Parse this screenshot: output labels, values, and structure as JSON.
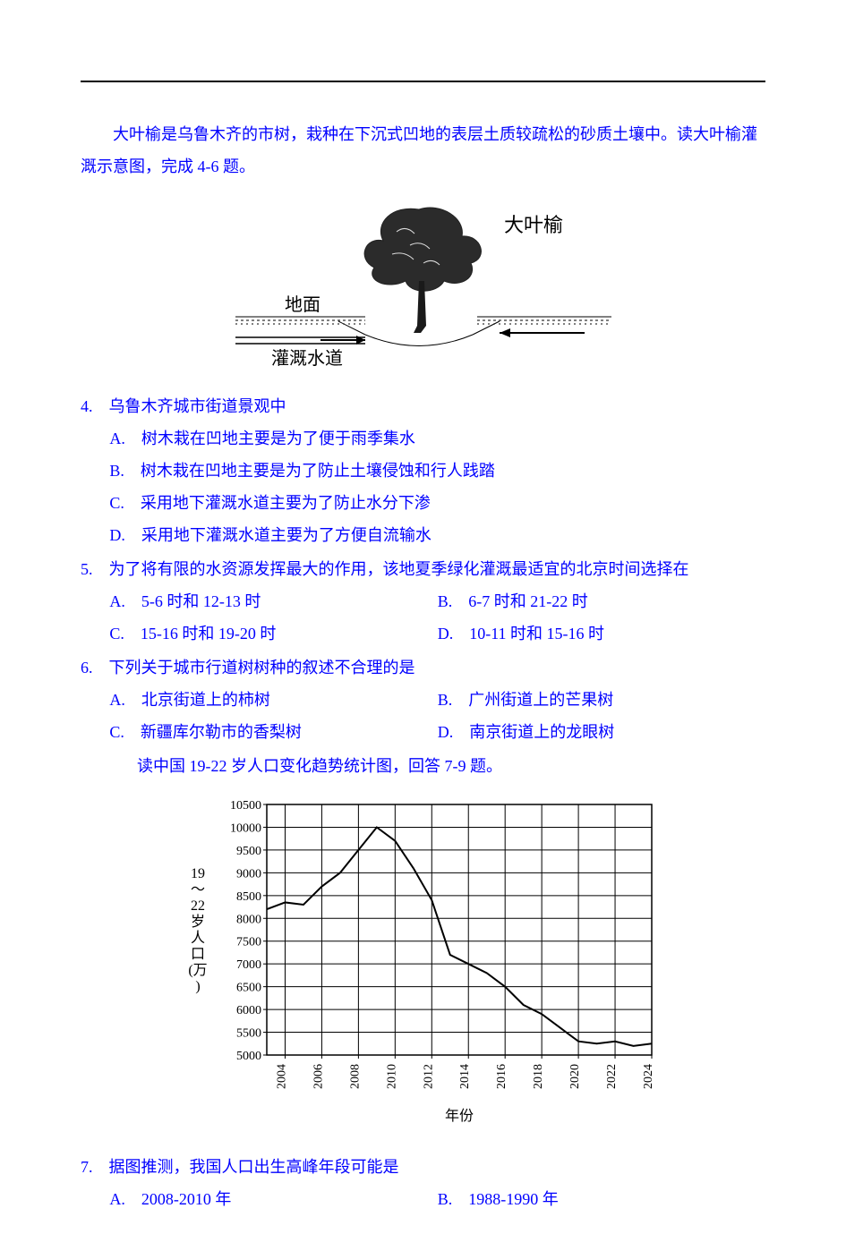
{
  "intro1": "大叶榆是乌鲁木齐的市树，栽种在下沉式凹地的表层土质较疏松的砂质土壤中。读大叶榆灌溉示意图，完成 4-6 题。",
  "diagram1": {
    "label_tree": "大叶榆",
    "label_ground": "地面",
    "label_channel": "灌溉水道"
  },
  "q4": {
    "stem": "4.　乌鲁木齐城市街道景观中",
    "A": "A.　树木栽在凹地主要是为了便于雨季集水",
    "B": "B.　树木栽在凹地主要是为了防止土壤侵蚀和行人践踏",
    "C": "C.　采用地下灌溉水道主要为了防止水分下渗",
    "D": "D.　采用地下灌溉水道主要为了方便自流输水"
  },
  "q5": {
    "stem": "5.　为了将有限的水资源发挥最大的作用，该地夏季绿化灌溉最适宜的北京时间选择在",
    "A": "A.　5-6 时和 12-13 时",
    "B": "B.　6-7 时和 21-22 时",
    "C": "C.　15-16 时和 19-20 时",
    "D": "D.　10-11 时和 15-16 时"
  },
  "q6": {
    "stem": "6.　下列关于城市行道树树种的叙述不合理的是",
    "A": "A.　北京街道上的柿树",
    "B": "B.　广州街道上的芒果树",
    "C": "C.　新疆库尔勒市的香梨树",
    "D": "D.　南京街道上的龙眼树"
  },
  "intro2": "读中国 19-22 岁人口变化趋势统计图，回答 7-9 题。",
  "chart": {
    "type": "line",
    "y_label_lines": [
      "19",
      "〜",
      "22",
      "岁",
      "人",
      "口",
      "(万",
      ")"
    ],
    "x_label": "年份",
    "y_ticks": [
      5000,
      5500,
      6000,
      6500,
      7000,
      7500,
      8000,
      8500,
      9000,
      9500,
      10000,
      10500
    ],
    "x_ticks": [
      2004,
      2006,
      2008,
      2010,
      2012,
      2014,
      2016,
      2018,
      2020,
      2022,
      2024
    ],
    "x_values": [
      2003,
      2004,
      2005,
      2006,
      2007,
      2008,
      2009,
      2010,
      2011,
      2012,
      2013,
      2014,
      2015,
      2016,
      2017,
      2018,
      2019,
      2020,
      2021,
      2022,
      2023,
      2024
    ],
    "y_values": [
      8200,
      8350,
      8300,
      8700,
      9000,
      9500,
      10000,
      9700,
      9100,
      8400,
      7200,
      7000,
      6800,
      6500,
      6100,
      5900,
      5600,
      5300,
      5250,
      5300,
      5200,
      5250
    ],
    "axis_color": "#000000",
    "grid_color": "#000000",
    "line_color": "#000000",
    "background": "#ffffff",
    "line_width": 2,
    "x_domain": [
      2003,
      2024
    ],
    "y_domain": [
      5000,
      10500
    ],
    "tick_fontsize": 14,
    "axis_label_fontsize": 16
  },
  "q7": {
    "stem": "7.　据图推测，我国人口出生高峰年段可能是",
    "A": "A.　2008-2010 年",
    "B": "B.　1988-1990 年"
  }
}
